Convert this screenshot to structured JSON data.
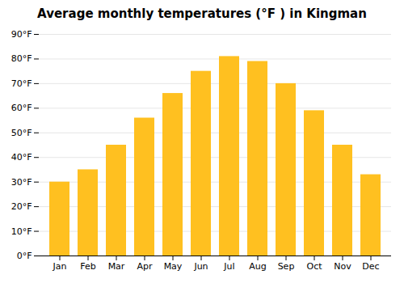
{
  "chart_data": {
    "type": "bar",
    "title": "Average monthly temperatures (°F ) in Kingman",
    "categories": [
      "Jan",
      "Feb",
      "Mar",
      "Apr",
      "May",
      "Jun",
      "Jul",
      "Aug",
      "Sep",
      "Oct",
      "Nov",
      "Dec"
    ],
    "values": [
      30,
      35,
      45,
      56,
      66,
      75,
      81,
      79,
      70,
      59,
      45,
      33
    ],
    "color": "#FFC020",
    "ylim": [
      0,
      90
    ],
    "yticks": [
      {
        "value": 0,
        "label": "0°F"
      },
      {
        "value": 10,
        "label": "10°F"
      },
      {
        "value": 20,
        "label": "20°F"
      },
      {
        "value": 30,
        "label": "30°F"
      },
      {
        "value": 40,
        "label": "40°F"
      },
      {
        "value": 50,
        "label": "50°F"
      },
      {
        "value": 60,
        "label": "60°F"
      },
      {
        "value": 70,
        "label": "70°F"
      },
      {
        "value": 80,
        "label": "80°F"
      },
      {
        "value": 90,
        "label": "90°F"
      }
    ],
    "grid": true
  }
}
